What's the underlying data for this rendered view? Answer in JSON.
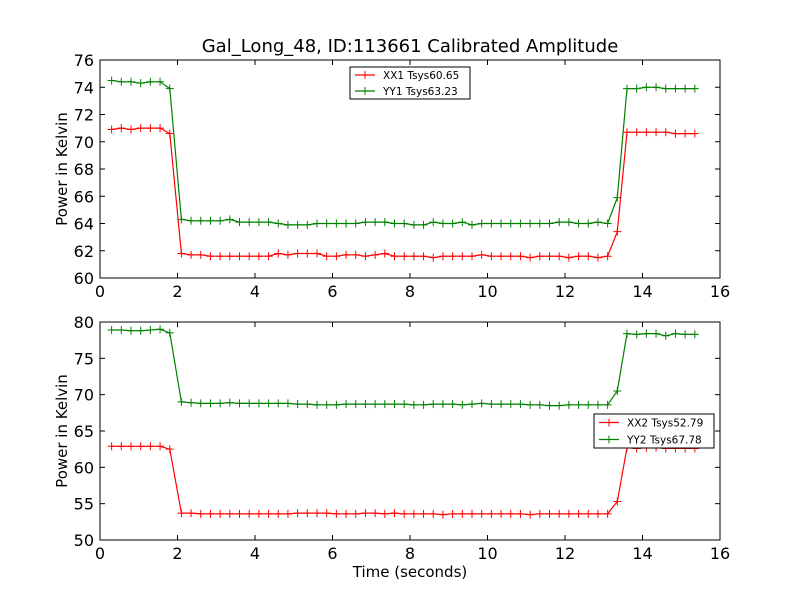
{
  "figure_title": "Gal_Long_48, ID:113661 Calibrated Amplitude",
  "chart_data": [
    {
      "type": "line",
      "title": "Gal_Long_48, ID:113661 Calibrated Amplitude",
      "xlabel": "",
      "ylabel": "Power in Kelvin",
      "xlim": [
        0,
        16
      ],
      "ylim": [
        60,
        76
      ],
      "xticks": [
        "0",
        "2",
        "4",
        "6",
        "8",
        "10",
        "12",
        "14",
        "16"
      ],
      "yticks": [
        "60",
        "62",
        "64",
        "66",
        "68",
        "70",
        "72",
        "74",
        "76"
      ],
      "legend_position": "upper center",
      "x": [
        0.3,
        0.55,
        0.8,
        1.05,
        1.3,
        1.55,
        1.8,
        2.1,
        2.35,
        2.6,
        2.85,
        3.1,
        3.35,
        3.6,
        3.85,
        4.1,
        4.35,
        4.6,
        4.85,
        5.1,
        5.35,
        5.6,
        5.85,
        6.1,
        6.35,
        6.6,
        6.85,
        7.1,
        7.35,
        7.6,
        7.85,
        8.1,
        8.35,
        8.6,
        8.85,
        9.1,
        9.35,
        9.6,
        9.85,
        10.1,
        10.35,
        10.6,
        10.85,
        11.1,
        11.35,
        11.6,
        11.85,
        12.1,
        12.35,
        12.6,
        12.85,
        13.1,
        13.35,
        13.6,
        13.85,
        14.1,
        14.35,
        14.6,
        14.85,
        15.1,
        15.35
      ],
      "series": [
        {
          "name": "XX1 Tsys60.65",
          "color": "#ff0000",
          "values": [
            70.9,
            71.0,
            70.9,
            71.0,
            71.0,
            71.0,
            70.6,
            61.8,
            61.7,
            61.7,
            61.6,
            61.6,
            61.6,
            61.6,
            61.6,
            61.6,
            61.6,
            61.8,
            61.7,
            61.8,
            61.8,
            61.8,
            61.6,
            61.6,
            61.7,
            61.7,
            61.6,
            61.7,
            61.8,
            61.6,
            61.6,
            61.6,
            61.6,
            61.5,
            61.6,
            61.6,
            61.6,
            61.6,
            61.7,
            61.6,
            61.6,
            61.6,
            61.6,
            61.5,
            61.6,
            61.6,
            61.6,
            61.5,
            61.6,
            61.6,
            61.5,
            61.6,
            63.4,
            70.7,
            70.7,
            70.7,
            70.7,
            70.7,
            70.6,
            70.6,
            70.6
          ]
        },
        {
          "name": "YY1 Tsys63.23",
          "color": "#008000",
          "values": [
            74.5,
            74.4,
            74.4,
            74.3,
            74.4,
            74.4,
            73.9,
            64.3,
            64.2,
            64.2,
            64.2,
            64.2,
            64.3,
            64.1,
            64.1,
            64.1,
            64.1,
            64.0,
            63.9,
            63.9,
            63.9,
            64.0,
            64.0,
            64.0,
            64.0,
            64.0,
            64.1,
            64.1,
            64.1,
            64.0,
            64.0,
            63.9,
            63.9,
            64.1,
            64.0,
            64.0,
            64.1,
            63.9,
            64.0,
            64.0,
            64.0,
            64.0,
            64.0,
            64.0,
            64.0,
            64.0,
            64.1,
            64.1,
            64.0,
            64.0,
            64.1,
            64.0,
            65.9,
            73.9,
            73.9,
            74.0,
            74.0,
            73.9,
            73.9,
            73.9,
            73.9
          ]
        }
      ]
    },
    {
      "type": "line",
      "title": "",
      "xlabel": "Time (seconds)",
      "ylabel": "Power in Kelvin",
      "xlim": [
        0,
        16
      ],
      "ylim": [
        50,
        80
      ],
      "xticks": [
        "0",
        "2",
        "4",
        "6",
        "8",
        "10",
        "12",
        "14",
        "16"
      ],
      "yticks": [
        "50",
        "55",
        "60",
        "65",
        "70",
        "75",
        "80"
      ],
      "legend_position": "center right",
      "x": [
        0.3,
        0.55,
        0.8,
        1.05,
        1.3,
        1.55,
        1.8,
        2.1,
        2.35,
        2.6,
        2.85,
        3.1,
        3.35,
        3.6,
        3.85,
        4.1,
        4.35,
        4.6,
        4.85,
        5.1,
        5.35,
        5.6,
        5.85,
        6.1,
        6.35,
        6.6,
        6.85,
        7.1,
        7.35,
        7.6,
        7.85,
        8.1,
        8.35,
        8.6,
        8.85,
        9.1,
        9.35,
        9.6,
        9.85,
        10.1,
        10.35,
        10.6,
        10.85,
        11.1,
        11.35,
        11.6,
        11.85,
        12.1,
        12.35,
        12.6,
        12.85,
        13.1,
        13.35,
        13.6,
        13.85,
        14.1,
        14.35,
        14.6,
        14.85,
        15.1,
        15.35
      ],
      "series": [
        {
          "name": "XX2 Tsys52.79",
          "color": "#ff0000",
          "values": [
            62.9,
            62.9,
            62.9,
            62.9,
            62.9,
            62.9,
            62.5,
            53.7,
            53.7,
            53.6,
            53.6,
            53.6,
            53.6,
            53.6,
            53.6,
            53.6,
            53.6,
            53.6,
            53.6,
            53.7,
            53.7,
            53.7,
            53.7,
            53.6,
            53.6,
            53.6,
            53.7,
            53.7,
            53.6,
            53.7,
            53.6,
            53.6,
            53.6,
            53.6,
            53.5,
            53.6,
            53.6,
            53.6,
            53.6,
            53.6,
            53.6,
            53.6,
            53.6,
            53.5,
            53.6,
            53.6,
            53.6,
            53.6,
            53.6,
            53.6,
            53.6,
            53.6,
            55.3,
            62.7,
            62.6,
            62.7,
            62.7,
            62.6,
            62.6,
            62.6,
            62.6
          ]
        },
        {
          "name": "YY2 Tsys67.78",
          "color": "#008000",
          "values": [
            78.9,
            78.9,
            78.8,
            78.8,
            78.9,
            79.0,
            78.5,
            69.0,
            68.9,
            68.8,
            68.8,
            68.8,
            68.9,
            68.8,
            68.8,
            68.8,
            68.8,
            68.8,
            68.8,
            68.7,
            68.7,
            68.6,
            68.6,
            68.6,
            68.7,
            68.7,
            68.7,
            68.7,
            68.7,
            68.7,
            68.7,
            68.6,
            68.6,
            68.7,
            68.7,
            68.7,
            68.6,
            68.7,
            68.8,
            68.7,
            68.7,
            68.7,
            68.7,
            68.6,
            68.6,
            68.5,
            68.5,
            68.6,
            68.6,
            68.6,
            68.6,
            68.6,
            70.5,
            78.4,
            78.3,
            78.4,
            78.4,
            78.1,
            78.4,
            78.3,
            78.3
          ]
        }
      ]
    }
  ]
}
